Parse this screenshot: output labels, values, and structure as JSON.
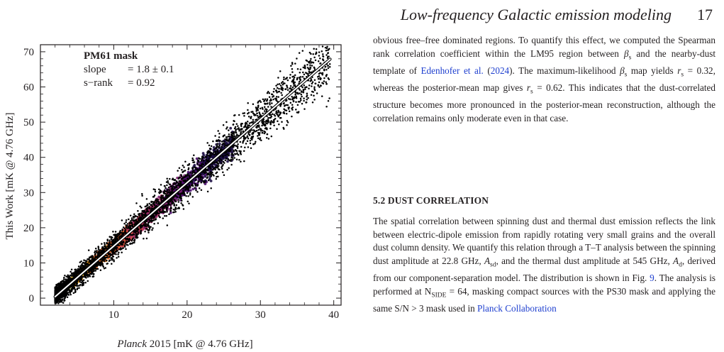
{
  "header": {
    "running_title": "Low-frequency Galactic emission modeling",
    "page_number": "17"
  },
  "figure": {
    "annotation": {
      "title": "PM61 mask",
      "slope_label": "slope",
      "slope_value": "= 1.8 ± 0.1",
      "srank_label": "s−rank",
      "srank_value": "= 0.92"
    }
  },
  "chart_data": {
    "type": "scatter",
    "xlabel_prefix": "Planck",
    "xlabel_suffix": " 2015 [mK @ 4.76 GHz]",
    "ylabel": "This Work [mK @ 4.76 GHz]",
    "xlim": [
      0,
      41
    ],
    "ylim": [
      -2,
      72
    ],
    "x_ticks": [
      "10",
      "20",
      "30",
      "40"
    ],
    "x_tick_values": [
      10,
      20,
      30,
      40
    ],
    "y_ticks": [
      "0",
      "10",
      "20",
      "30",
      "40",
      "50",
      "60",
      "70"
    ],
    "y_tick_values": [
      0,
      10,
      20,
      30,
      40,
      50,
      60,
      70
    ],
    "fit_line": {
      "slope": 1.8,
      "intercept": -3.2,
      "x_range": [
        2,
        39.5
      ]
    },
    "density_colormap": [
      "#1b0c41",
      "#4a0c6b",
      "#781c6d",
      "#a52c60",
      "#cf4446",
      "#ed6925",
      "#fb9b06",
      "#f7d13d",
      "#fcffa4"
    ],
    "scatter_color": "#000000",
    "fit_color": "#ffffff"
  },
  "text": {
    "para1": {
      "a": "obvious free–free dominated regions. To quantify this effect, we computed the Spearman rank correlation coefficient within the LM95 region between ",
      "beta": "β",
      "s": "s",
      "b": " and the nearby-dust template of ",
      "cite1": "Edenhofer et al.",
      "cite1_year": "2024",
      "c": "). The maximum-likelihood ",
      "d": " map yields ",
      "r": "r",
      "e": " = 0.32, whereas the posterior-mean map gives ",
      "f": " = 0.62. This indicates that the dust-correlated structure becomes more pronounced in the posterior-mean reconstruction, although the correlation remains only moderate even in that case."
    },
    "section_heading": "5.2 DUST CORRELATION",
    "para2": {
      "a": "The spatial correlation between spinning dust and thermal dust emission reflects the link between electric-dipole emission from rapidly rotating very small grains and the overall dust column density. We quantify this relation through a T–T analysis between the spinning dust amplitude at 22.8 GHz, ",
      "A": "A",
      "sd": "sd",
      "b": ", and the thermal dust amplitude at 545 GHz, ",
      "d": "d",
      "c": ", derived from our component-separation model. The distribution is shown in Fig. ",
      "fig_ref": "9",
      "e": ". The analysis is performed at N",
      "nside_sub": "SIDE",
      "f": " = 64, masking compact sources with the PS30 mask and applying the same S/N > 3 mask used in ",
      "cite2": "Planck Collaboration"
    }
  }
}
